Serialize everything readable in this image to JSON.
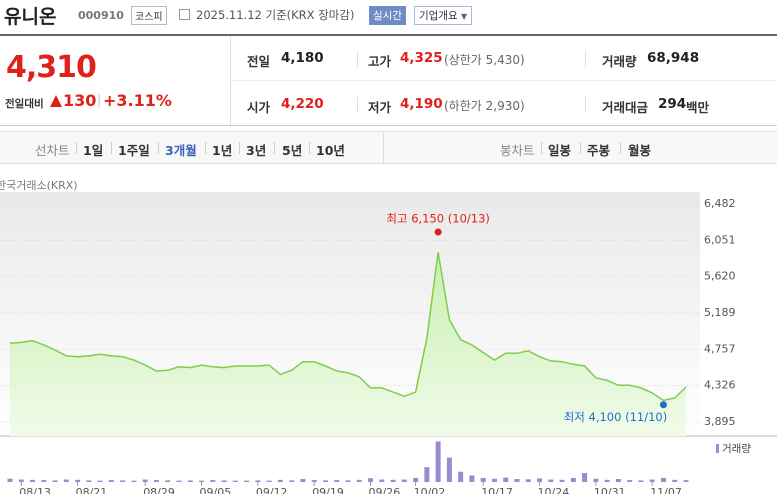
{
  "header": {
    "name": "유니온",
    "code": "000910",
    "market": "코스피",
    "date": "2025.11.12 기준(KRX 장마감)",
    "realtime": "실시간",
    "company": "기업개요"
  },
  "quote": {
    "price": "4,310",
    "change_label": "전일대비",
    "change": "130",
    "change_rate": "+3.11%"
  },
  "summary": [
    [
      {
        "label": "전일",
        "value": "4,180"
      },
      {
        "label": "고가",
        "value": "4,325",
        "note": "(상한가 5,430)"
      },
      {
        "label": "거래량",
        "value": "68,948"
      }
    ],
    [
      {
        "label": "시가",
        "value": "4,220"
      },
      {
        "label": "저가",
        "value": "4,190",
        "note": "(하한가 2,930)"
      },
      {
        "label": "거래대금",
        "value": "294",
        "unit": "백만"
      }
    ]
  ],
  "tabs": {
    "line_label": "선차트",
    "line": [
      "1일",
      "1주일",
      "3개월",
      "1년",
      "3년",
      "5년",
      "10년"
    ],
    "candle_label": "봉차트",
    "candle": [
      "일봉",
      "주봉",
      "월봉"
    ]
  },
  "chart_data": {
    "type": "line",
    "source": "한국거래소(KRX)",
    "color": "#7ccf4a",
    "grid": true,
    "categories": [
      null,
      "08/13",
      null,
      null,
      null,
      null,
      "08/21",
      null,
      null,
      null,
      null,
      null,
      "08/29",
      null,
      null,
      null,
      null,
      "09/05",
      null,
      null,
      null,
      null,
      "09/12",
      null,
      null,
      null,
      null,
      "09/19",
      null,
      null,
      null,
      null,
      "09/26",
      null,
      null,
      null,
      "10/02",
      null,
      null,
      null,
      null,
      null,
      "10/17",
      null,
      null,
      null,
      null,
      "10/24",
      null,
      null,
      null,
      null,
      "10/31",
      null,
      null,
      null,
      null,
      "11/07",
      null,
      null,
      null
    ],
    "values": [
      4830,
      4840,
      4860,
      4810,
      4750,
      4680,
      4670,
      4680,
      4700,
      4680,
      4670,
      4630,
      4570,
      4500,
      4510,
      4550,
      4540,
      4570,
      4550,
      4540,
      4560,
      4560,
      4560,
      4570,
      4460,
      4510,
      4610,
      4610,
      4560,
      4500,
      4480,
      4430,
      4300,
      4300,
      4250,
      4200,
      4250,
      4890,
      5910,
      5110,
      4870,
      4810,
      4720,
      4630,
      4710,
      4710,
      4740,
      4670,
      4620,
      4610,
      4580,
      4560,
      4420,
      4390,
      4330,
      4330,
      4300,
      4240,
      4150,
      4180,
      4310
    ],
    "ylim": [
      3895,
      6482
    ],
    "yticks": [
      {
        "value": 6482,
        "label": "6,482"
      },
      {
        "value": 6051,
        "label": "6,051"
      },
      {
        "value": 5620,
        "label": "5,620"
      },
      {
        "value": 5189,
        "label": "5,189"
      },
      {
        "value": 4757,
        "label": "4,757"
      },
      {
        "value": 4326,
        "label": "4,326"
      },
      {
        "value": 3895,
        "label": "3,895"
      }
    ],
    "annotations": [
      {
        "text": "최고 6,150 (10/13)",
        "value": 6150,
        "color": "#e0201b"
      },
      {
        "text": "최저 4,100 (11/10)",
        "value": 4100,
        "color": "#1d6fce"
      }
    ],
    "volume": {
      "name": "거래량",
      "color": "#9a8ad0",
      "y2lim": [
        0,
        1700000
      ],
      "values": [
        120000,
        90000,
        80000,
        70000,
        60000,
        90000,
        80000,
        60000,
        50000,
        70000,
        60000,
        50000,
        90000,
        70000,
        60000,
        50000,
        60000,
        50000,
        70000,
        60000,
        50000,
        50000,
        60000,
        50000,
        80000,
        60000,
        110000,
        70000,
        60000,
        70000,
        60000,
        80000,
        140000,
        90000,
        80000,
        90000,
        150000,
        550000,
        1500000,
        900000,
        380000,
        240000,
        150000,
        120000,
        160000,
        110000,
        100000,
        130000,
        90000,
        80000,
        150000,
        330000,
        120000,
        80000,
        110000,
        70000,
        60000,
        90000,
        150000,
        80000,
        68948
      ]
    }
  }
}
